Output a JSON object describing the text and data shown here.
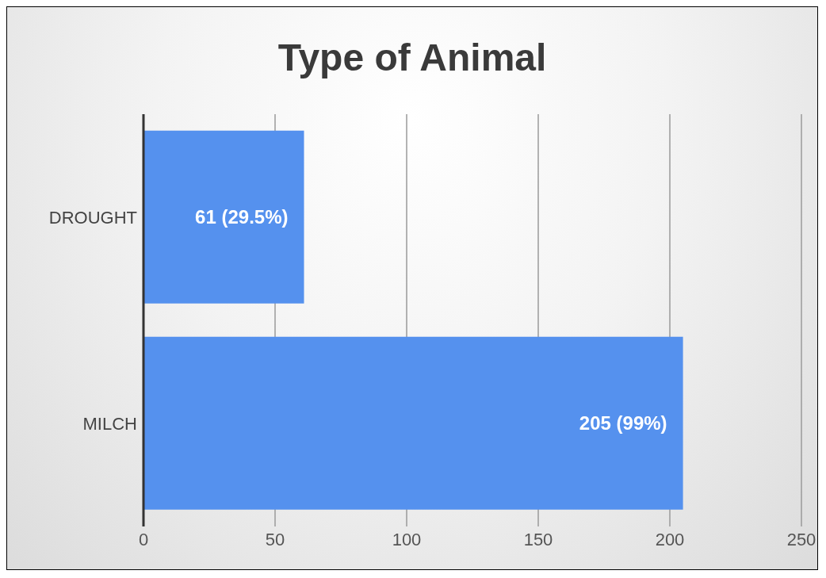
{
  "chart_data": {
    "type": "bar",
    "orientation": "horizontal",
    "title": "Type of Animal",
    "categories": [
      "DROUGHT",
      "MILCH"
    ],
    "values": [
      61,
      205
    ],
    "value_labels": [
      "61 (29.5%)",
      "205 (99%)"
    ],
    "color": "#5591ee",
    "xlim": [
      0,
      250
    ],
    "xticks": [
      0,
      50,
      100,
      150,
      200,
      250
    ],
    "grid": "x",
    "legend": false
  }
}
